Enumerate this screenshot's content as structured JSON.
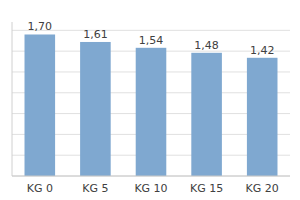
{
  "chart_data": {
    "type": "bar",
    "categories": [
      "KG 0",
      "KG 5",
      "KG 10",
      "KG 15",
      "KG 20"
    ],
    "values": [
      1.7,
      1.61,
      1.54,
      1.48,
      1.42
    ],
    "value_labels": [
      "1,70",
      "1,61",
      "1,54",
      "1,48",
      "1,42"
    ],
    "color": "#7fa8d0",
    "ylim": [
      0,
      1.85
    ],
    "yticks": [
      0,
      0.25,
      0.5,
      0.75,
      1,
      1.25,
      1.5,
      1.75
    ],
    "grid": true,
    "data_labels": true,
    "tick_labels": "x"
  }
}
